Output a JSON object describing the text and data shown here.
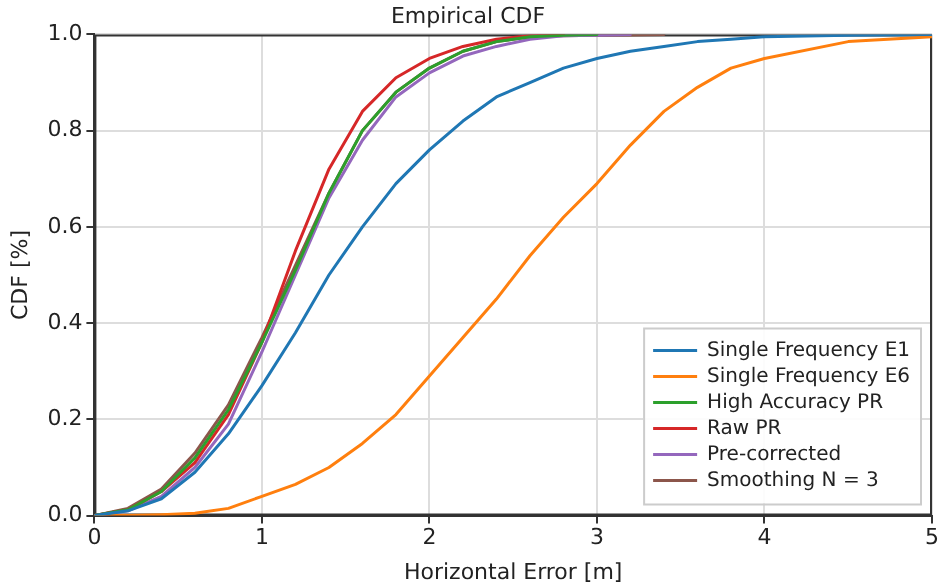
{
  "chart_data": {
    "type": "line",
    "title": "Empirical CDF",
    "xlabel": "Horizontal Error [m]",
    "ylabel": "CDF [%]",
    "x": [
      0,
      0.2,
      0.4,
      0.6,
      0.8,
      1.0,
      1.2,
      1.4,
      1.6,
      1.8,
      2.0,
      2.2,
      2.4,
      2.6,
      2.8,
      3.0,
      3.2,
      3.4,
      3.6,
      3.8,
      4.0,
      4.5,
      5.0
    ],
    "series": [
      {
        "name": "Single Frequency E1",
        "color": "#1f77b4",
        "values": [
          0,
          0.01,
          0.035,
          0.09,
          0.17,
          0.27,
          0.38,
          0.5,
          0.6,
          0.69,
          0.76,
          0.82,
          0.87,
          0.9,
          0.93,
          0.95,
          0.965,
          0.975,
          0.985,
          0.99,
          0.995,
          0.998,
          1
        ]
      },
      {
        "name": "Single Frequency E6",
        "color": "#ff7f0e",
        "values": [
          0,
          0,
          0.002,
          0.005,
          0.015,
          0.04,
          0.065,
          0.1,
          0.15,
          0.21,
          0.29,
          0.37,
          0.45,
          0.54,
          0.62,
          0.69,
          0.77,
          0.84,
          0.89,
          0.93,
          0.95,
          0.985,
          0.995
        ]
      },
      {
        "name": "High Accuracy PR",
        "color": "#2ca02c",
        "x": [
          0,
          0.2,
          0.4,
          0.6,
          0.8,
          1.0,
          1.2,
          1.4,
          1.6,
          1.8,
          2.0,
          2.2,
          2.4,
          2.6,
          2.8,
          3.0
        ],
        "values": [
          0,
          0.012,
          0.05,
          0.12,
          0.22,
          0.36,
          0.51,
          0.67,
          0.8,
          0.88,
          0.93,
          0.965,
          0.985,
          0.995,
          0.998,
          1
        ]
      },
      {
        "name": "Raw PR",
        "color": "#d62728",
        "x": [
          0,
          0.2,
          0.4,
          0.6,
          0.8,
          1.0,
          1.2,
          1.4,
          1.6,
          1.8,
          2.0,
          2.2,
          2.4,
          2.6,
          2.8
        ],
        "values": [
          0,
          0.012,
          0.05,
          0.11,
          0.21,
          0.36,
          0.55,
          0.72,
          0.84,
          0.91,
          0.95,
          0.975,
          0.99,
          0.997,
          1
        ]
      },
      {
        "name": "Pre-corrected",
        "color": "#9467bd",
        "x": [
          0,
          0.2,
          0.4,
          0.6,
          0.8,
          1.0,
          1.2,
          1.4,
          1.6,
          1.8,
          2.0,
          2.2,
          2.4,
          2.6,
          2.8,
          3.0,
          3.2
        ],
        "values": [
          0,
          0.01,
          0.04,
          0.1,
          0.19,
          0.34,
          0.5,
          0.66,
          0.78,
          0.87,
          0.92,
          0.955,
          0.975,
          0.99,
          0.997,
          0.998,
          1
        ]
      },
      {
        "name": "Smoothing N = 3",
        "color": "#8c564b",
        "x": [
          0,
          0.2,
          0.4,
          0.6,
          0.8,
          1.0,
          1.2,
          1.4,
          1.6,
          1.8,
          2.0,
          2.2,
          2.4,
          2.6,
          2.8,
          3.0,
          3.2,
          3.4
        ],
        "values": [
          0,
          0.015,
          0.055,
          0.13,
          0.23,
          0.37,
          0.52,
          0.67,
          0.8,
          0.88,
          0.93,
          0.965,
          0.985,
          0.995,
          0.997,
          0.998,
          0.999,
          1
        ]
      }
    ],
    "xlim": [
      0,
      5
    ],
    "xticks": [
      0,
      1,
      2,
      3,
      4,
      5
    ],
    "ylim": [
      0,
      1
    ],
    "yticks": [
      {
        "value": 0,
        "label": "0.0"
      },
      {
        "value": 0.2,
        "label": "0.2"
      },
      {
        "value": 0.4,
        "label": "0.4"
      },
      {
        "value": 0.6,
        "label": "0.6"
      },
      {
        "value": 0.8,
        "label": "0.8"
      },
      {
        "value": 1,
        "label": "1.0"
      }
    ],
    "grid": true,
    "legend": "bottom right",
    "marker": "none",
    "line_style": "solid"
  }
}
